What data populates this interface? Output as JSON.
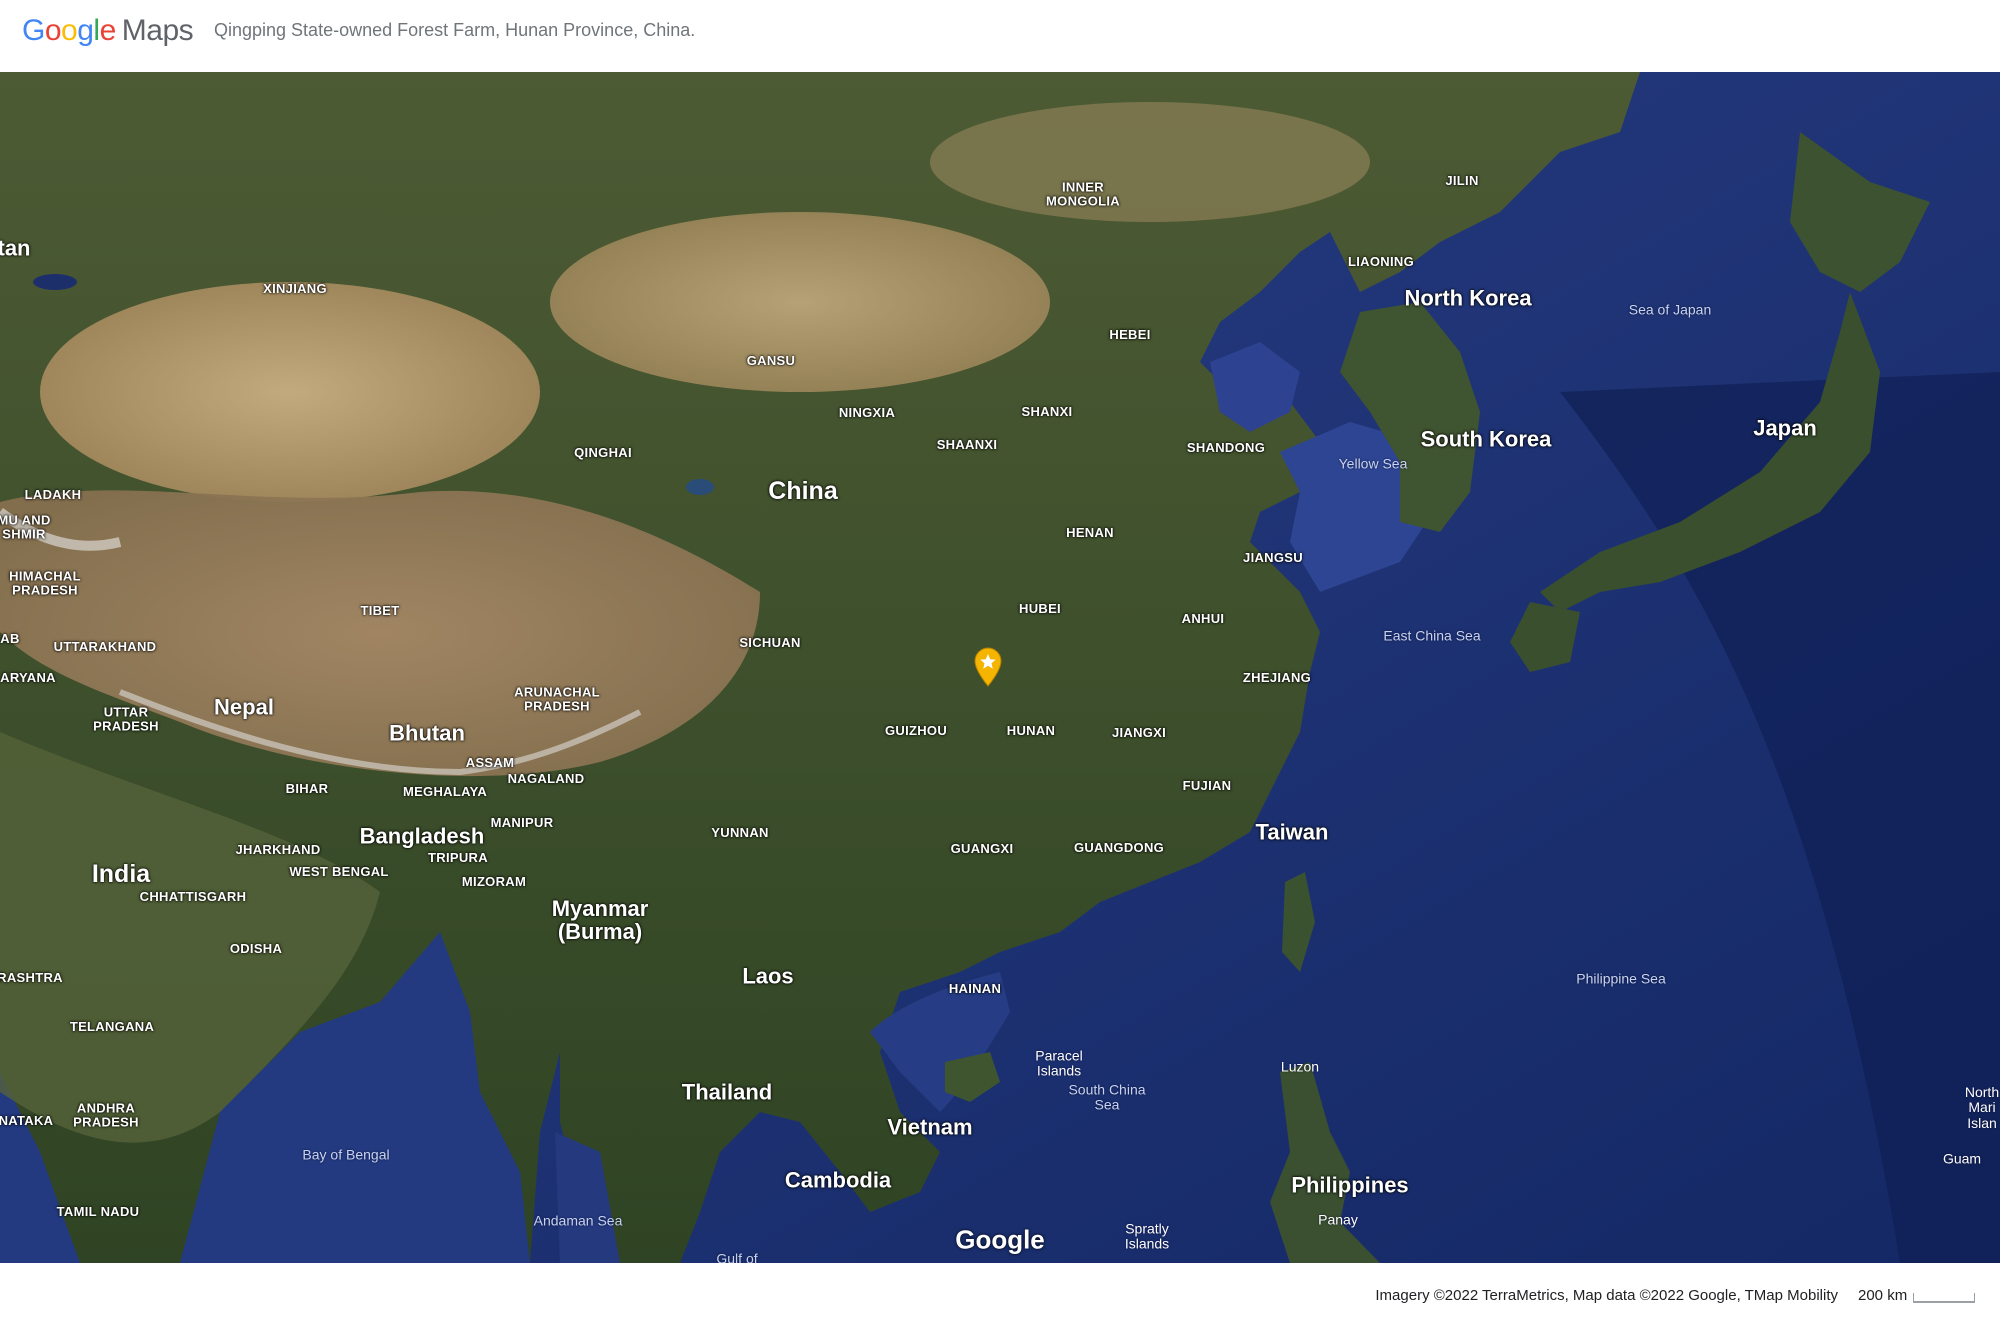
{
  "header": {
    "brand_google": [
      "G",
      "o",
      "o",
      "g",
      "l",
      "e"
    ],
    "brand_maps": "Maps",
    "place_title": "Qingping State-owned Forest Farm, Hunan Province, China."
  },
  "map": {
    "type": "satellite",
    "watermark": "Google",
    "countries": [
      "China",
      "North Korea",
      "South Korea",
      "Japan",
      "Taiwan",
      "Nepal",
      "Bhutan",
      "Bangladesh",
      "India",
      "Myanmar (Burma)",
      "Laos",
      "Thailand",
      "Vietnam",
      "Cambodia",
      "Philippines"
    ],
    "partial_labels": [
      "tan",
      "MU AND SHMIR",
      "AB",
      "ARYANA",
      "RASHTRA",
      "NATAKA"
    ],
    "provinces": [
      "XINJIANG",
      "INNER MONGOLIA",
      "JILIN",
      "LIAONING",
      "HEBEI",
      "GANSU",
      "NINGXIA",
      "SHANXI",
      "SHAANXI",
      "SHANDONG",
      "QINGHAI",
      "HENAN",
      "JIANGSU",
      "HUBEI",
      "ANHUI",
      "SICHUAN",
      "ZHEJIANG",
      "GUIZHOU",
      "HUNAN",
      "JIANGXI",
      "FUJIAN",
      "YUNNAN",
      "GUANGXI",
      "GUANGDONG",
      "HAINAN",
      "TIBET",
      "LADAKH",
      "HIMACHAL PRADESH",
      "UTTARAKHAND",
      "UTTAR PRADESH",
      "ARUNACHAL PRADESH",
      "ASSAM",
      "NAGALAND",
      "BIHAR",
      "MEGHALAYA",
      "MANIPUR",
      "JHARKHAND",
      "TRIPURA",
      "WEST BENGAL",
      "MIZORAM",
      "CHHATTISGARH",
      "ODISHA",
      "TELANGANA",
      "ANDHRA PRADESH",
      "TAMIL NADU"
    ],
    "seas": [
      "Sea of Japan",
      "Yellow Sea",
      "East China Sea",
      "Philippine Sea",
      "Bay of Bengal",
      "Andaman Sea",
      "South China Sea",
      "Gulf of",
      "Paracel Islands",
      "Spratly Islands",
      "Luzon",
      "Panay",
      "Guam",
      "North Mari Islan"
    ],
    "marker": {
      "icon": "star-pin-icon",
      "color": "#F4B400",
      "place": "Qingping State-owned Forest Farm"
    }
  },
  "footer": {
    "attribution": "Imagery ©2022 TerraMetrics, Map data ©2022 Google, TMap Mobility",
    "scale": "200 km"
  }
}
